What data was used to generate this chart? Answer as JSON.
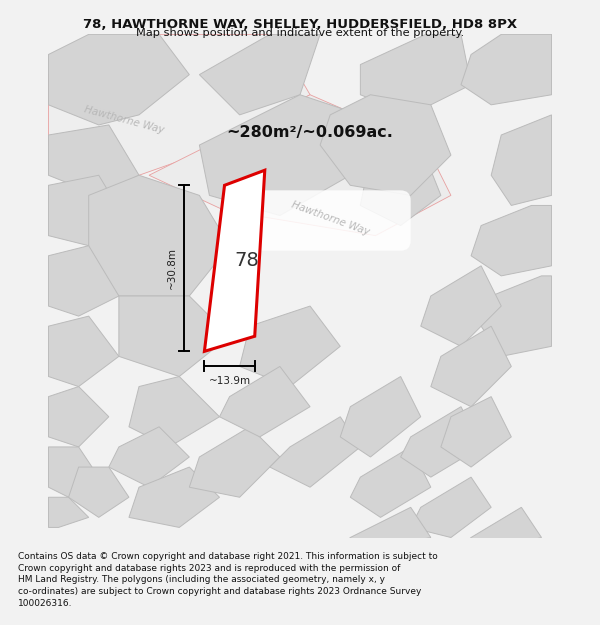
{
  "title": "78, HAWTHORNE WAY, SHELLEY, HUDDERSFIELD, HD8 8PX",
  "subtitle": "Map shows position and indicative extent of the property.",
  "area_label": "~280m²/~0.069ac.",
  "property_number": "78",
  "dim_height": "~30.8m",
  "dim_width": "~13.9m",
  "street_name_upper": "Hawthorne Way",
  "street_name_lower": "Hawthorne Way",
  "footnote": "Contains OS data © Crown copyright and database right 2021. This information is subject to Crown copyright and database rights 2023 and is reproduced with the permission of HM Land Registry. The polygons (including the associated geometry, namely x, y co-ordinates) are subject to Crown copyright and database rights 2023 Ordnance Survey 100026316.",
  "bg_color": "#f2f2f2",
  "map_bg": "#ffffff",
  "building_fill": "#d4d4d4",
  "building_edge": "#bbbbbb",
  "parcel_edge_pink": "#e8a0a0",
  "plot_outline_color": "#dd0000",
  "footnote_color": "#111111",
  "title_color": "#111111",
  "dim_color": "#222222",
  "street_label_color": "#b8b8b8",
  "area_label_color": "#111111"
}
